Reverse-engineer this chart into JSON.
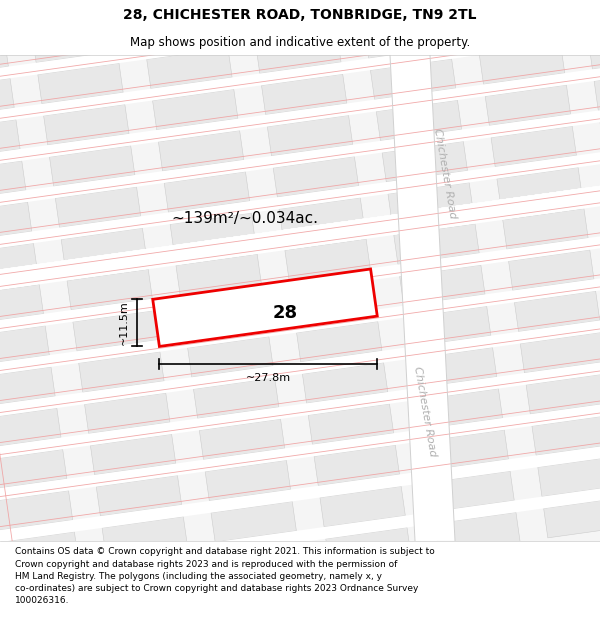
{
  "title": "28, CHICHESTER ROAD, TONBRIDGE, TN9 2TL",
  "subtitle": "Map shows position and indicative extent of the property.",
  "area_label": "~139m²/~0.034ac.",
  "property_number": "28",
  "width_label": "~27.8m",
  "height_label": "~11.5m",
  "footer_line1": "Contains OS data © Crown copyright and database right 2021. This information is subject to",
  "footer_line2": "Crown copyright and database rights 2023 and is reproduced with the permission of",
  "footer_line3": "HM Land Registry. The polygons (including the associated geometry, namely x, y",
  "footer_line4": "co-ordinates) are subject to Crown copyright and database rights 2023 Ordnance Survey",
  "footer_line5": "100026316.",
  "road_label": "Chichester Road",
  "road_label_color": "#b0b0b0",
  "grid_color": "#f0a0a0",
  "property_edge": "#ee0000",
  "building_fill": "#e8e8e8",
  "building_edge": "#cccccc",
  "map_bg": "#f5f5f5",
  "title_fs": 10,
  "subtitle_fs": 8.5,
  "area_fs": 12,
  "propnum_fs": 14,
  "footer_fs": 6.5,
  "grid_ang": 8,
  "road_ang": 8
}
